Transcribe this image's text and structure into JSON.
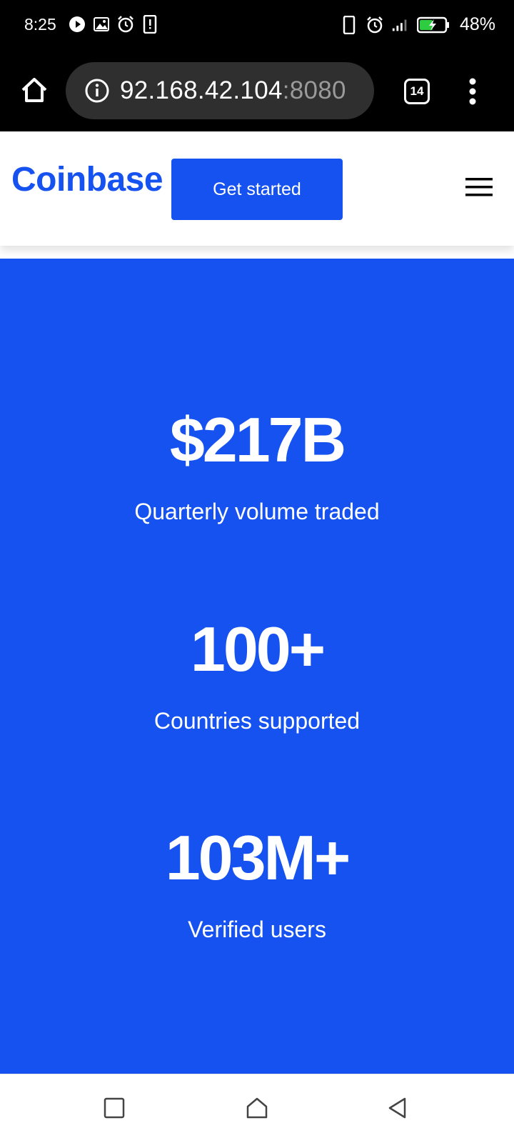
{
  "status_bar": {
    "time": "8:25",
    "left_icons": [
      "play-circle-icon",
      "image-icon",
      "alarm-icon",
      "phone-alert-icon"
    ],
    "right_icons": [
      "vibrate-icon",
      "alarm-icon",
      "signal-icon",
      "battery-charging-icon"
    ],
    "battery_percent": "48%"
  },
  "browser": {
    "url_host": "92.168.42.104",
    "url_port": ":8080",
    "tab_count": "14"
  },
  "header": {
    "logo": "Coinbase",
    "cta_label": "Get started"
  },
  "stats": [
    {
      "value": "$217B",
      "label": "Quarterly volume traded"
    },
    {
      "value": "100+",
      "label": "Countries supported"
    },
    {
      "value": "103M+",
      "label": "Verified users"
    }
  ],
  "colors": {
    "brand_blue": "#1652f0",
    "status_bar_bg": "#000000",
    "url_bar_bg": "#2f2f2f"
  }
}
